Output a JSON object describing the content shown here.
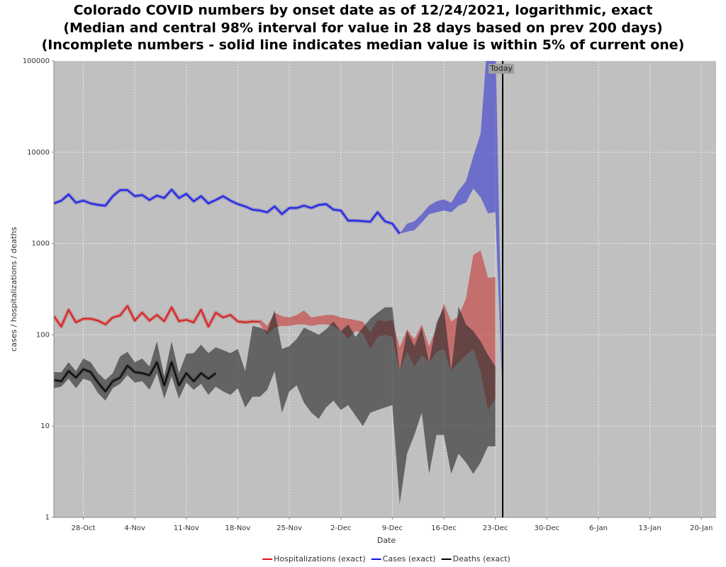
{
  "chart_data": {
    "type": "line",
    "title": [
      "Colorado COVID numbers by onset date as of 12/24/2021, logarithmic, exact",
      "(Median and central 98% interval for value in 28 days based on prev 200 days)",
      "(Incomplete numbers - solid line indicates median value is within 5% of current one)"
    ],
    "x_label": "Date",
    "y_label": "cases / hospitalizations / deaths",
    "log_y": true,
    "grid": true,
    "legend": "bottom",
    "ylim": [
      1,
      100000
    ],
    "yticks": [
      1,
      10,
      100,
      1000,
      10000,
      100000
    ],
    "xlim": [
      "24-Oct",
      "22-Jan"
    ],
    "xticks": [
      "28-Oct",
      "4-Nov",
      "11-Nov",
      "18-Nov",
      "25-Nov",
      "2-Dec",
      "9-Dec",
      "16-Dec",
      "23-Dec",
      "30-Dec",
      "6-Jan",
      "13-Jan",
      "20-Jan"
    ],
    "annotations": [
      {
        "x": "24-Dec",
        "label": "Today"
      }
    ],
    "x": [
      "24-Oct",
      "25-Oct",
      "26-Oct",
      "27-Oct",
      "28-Oct",
      "29-Oct",
      "30-Oct",
      "31-Oct",
      "1-Nov",
      "2-Nov",
      "3-Nov",
      "4-Nov",
      "5-Nov",
      "6-Nov",
      "7-Nov",
      "8-Nov",
      "9-Nov",
      "10-Nov",
      "11-Nov",
      "12-Nov",
      "13-Nov",
      "14-Nov",
      "15-Nov",
      "16-Nov",
      "17-Nov",
      "18-Nov",
      "19-Nov",
      "20-Nov",
      "21-Nov",
      "22-Nov",
      "23-Nov",
      "24-Nov",
      "25-Nov",
      "26-Nov",
      "27-Nov",
      "28-Nov",
      "29-Nov",
      "30-Nov",
      "1-Dec",
      "2-Dec",
      "3-Dec",
      "4-Dec",
      "5-Dec",
      "6-Dec",
      "7-Dec",
      "8-Dec",
      "9-Dec",
      "10-Dec",
      "11-Dec",
      "12-Dec",
      "13-Dec",
      "14-Dec",
      "15-Dec",
      "16-Dec",
      "17-Dec",
      "18-Dec",
      "19-Dec",
      "20-Dec",
      "21-Dec",
      "22-Dec",
      "23-Dec",
      "24-Dec"
    ],
    "series": [
      {
        "name": "Hospitalizations (exact)",
        "color": "#dd1111",
        "band_color": "#c83c3c",
        "values": [
          160,
          123,
          188,
          137,
          150,
          150,
          143,
          130,
          155,
          163,
          207,
          143,
          175,
          143,
          165,
          141,
          200,
          141,
          146,
          137,
          188,
          123,
          175,
          155,
          165,
          140,
          137,
          140,
          139,
          null,
          null,
          null,
          null,
          null,
          null,
          null,
          null,
          null,
          null,
          null,
          null,
          null,
          null,
          null,
          null,
          null,
          null,
          null,
          null,
          null,
          null,
          null,
          null,
          null,
          null,
          null,
          null,
          null,
          null,
          null,
          null,
          null
        ],
        "low": [
          null,
          null,
          null,
          null,
          null,
          null,
          null,
          null,
          null,
          null,
          null,
          null,
          null,
          null,
          null,
          null,
          null,
          null,
          null,
          null,
          null,
          null,
          null,
          null,
          null,
          null,
          null,
          null,
          130,
          100,
          120,
          125,
          125,
          130,
          130,
          125,
          130,
          130,
          125,
          110,
          90,
          110,
          105,
          70,
          95,
          100,
          95,
          40,
          65,
          45,
          60,
          50,
          65,
          70,
          40,
          50,
          60,
          70,
          40,
          15,
          20,
          null
        ],
        "high": [
          null,
          null,
          null,
          null,
          null,
          null,
          null,
          null,
          null,
          null,
          null,
          null,
          null,
          null,
          null,
          null,
          null,
          null,
          null,
          null,
          null,
          null,
          null,
          null,
          null,
          null,
          null,
          null,
          148,
          125,
          175,
          160,
          155,
          165,
          185,
          155,
          160,
          165,
          165,
          155,
          150,
          145,
          140,
          105,
          145,
          140,
          145,
          73,
          115,
          90,
          130,
          75,
          120,
          220,
          140,
          160,
          250,
          750,
          840,
          420,
          430,
          null
        ]
      },
      {
        "name": "Cases (exact)",
        "color": "#1010ee",
        "band_color": "#3a3ad0",
        "values": [
          2750,
          2950,
          3450,
          2800,
          2950,
          2750,
          2650,
          2600,
          3300,
          3850,
          3850,
          3300,
          3400,
          3000,
          3350,
          3150,
          3900,
          3150,
          3500,
          2900,
          3300,
          2750,
          3000,
          3300,
          2950,
          2700,
          2550,
          2350,
          2300,
          2200,
          2550,
          2100,
          2450,
          2450,
          2600,
          2450,
          2650,
          2700,
          2350,
          2300,
          1780,
          1780,
          1760,
          1730,
          2200,
          1750,
          1650,
          1280,
          null,
          null,
          null,
          null,
          null,
          null,
          null,
          null,
          null,
          null,
          null,
          null,
          null,
          null
        ],
        "low": [
          null,
          null,
          null,
          null,
          null,
          null,
          null,
          null,
          null,
          null,
          null,
          null,
          null,
          null,
          null,
          null,
          null,
          null,
          null,
          null,
          null,
          null,
          null,
          null,
          null,
          null,
          null,
          null,
          null,
          null,
          null,
          null,
          null,
          null,
          null,
          null,
          null,
          null,
          null,
          null,
          null,
          null,
          null,
          null,
          null,
          null,
          null,
          1280,
          1350,
          1400,
          1700,
          2100,
          2200,
          2300,
          2200,
          2600,
          2800,
          4000,
          3200,
          2150,
          2200,
          20
        ],
        "high": [
          null,
          null,
          null,
          null,
          null,
          null,
          null,
          null,
          null,
          null,
          null,
          null,
          null,
          null,
          null,
          null,
          null,
          null,
          null,
          null,
          null,
          null,
          null,
          null,
          null,
          null,
          null,
          null,
          null,
          null,
          null,
          null,
          null,
          null,
          null,
          null,
          null,
          null,
          null,
          null,
          null,
          null,
          null,
          null,
          null,
          null,
          null,
          1280,
          1650,
          1750,
          2100,
          2600,
          2900,
          3050,
          2800,
          3800,
          4800,
          9000,
          16000,
          200000,
          200000,
          20
        ]
      },
      {
        "name": "Deaths (exact)",
        "color": "#000000",
        "band_color": "#2a2a2a",
        "values": [
          32,
          31,
          40,
          34,
          42,
          39,
          30,
          24,
          31,
          34,
          46,
          39,
          38,
          36,
          50,
          28,
          50,
          28,
          38,
          31,
          38,
          33,
          38,
          null,
          null,
          null,
          null,
          null,
          null,
          null,
          null,
          null,
          null,
          null,
          null,
          null,
          null,
          null,
          null,
          null,
          null,
          null,
          null,
          null,
          null,
          null,
          null,
          null,
          null,
          null,
          null,
          null,
          null,
          null,
          null,
          null,
          null,
          null,
          null,
          null,
          null,
          null
        ],
        "low": [
          26,
          27,
          33,
          26,
          33,
          31,
          23,
          19,
          26,
          29,
          36,
          30,
          31,
          25,
          38,
          20,
          35,
          20,
          30,
          25,
          29,
          22,
          27,
          24,
          22,
          26,
          16,
          21,
          21,
          25,
          40,
          14,
          24,
          28,
          18,
          14,
          12,
          16,
          19,
          15,
          17,
          13,
          10,
          14,
          15,
          16,
          17,
          1.4,
          5,
          8,
          14,
          3,
          8,
          8,
          3,
          5,
          4,
          3,
          4,
          6,
          6,
          null
        ],
        "high": [
          39,
          39,
          50,
          40,
          55,
          50,
          38,
          32,
          38,
          58,
          65,
          50,
          55,
          45,
          85,
          35,
          85,
          38,
          62,
          63,
          78,
          63,
          73,
          68,
          63,
          70,
          40,
          125,
          120,
          110,
          185,
          70,
          75,
          90,
          120,
          110,
          100,
          115,
          140,
          110,
          130,
          95,
          120,
          150,
          175,
          200,
          200,
          40,
          110,
          75,
          120,
          50,
          135,
          200,
          40,
          205,
          130,
          110,
          85,
          60,
          45,
          null
        ]
      }
    ]
  }
}
